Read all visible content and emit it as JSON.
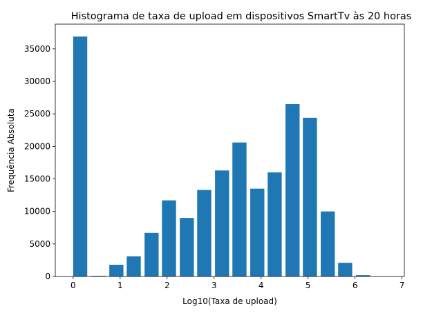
{
  "chart_data": {
    "type": "bar",
    "title": "Histograma de taxa de upload em dispositivos SmartTv às 20 horas",
    "xlabel": "Log10(Taxa de upload)",
    "ylabel": "Frequência Absoluta",
    "xlim": [
      -0.38,
      7.05
    ],
    "ylim": [
      0,
      38800
    ],
    "bar_width": 0.3,
    "bar_color": "#1f77b4",
    "x": [
      0.15,
      0.54,
      0.92,
      1.29,
      1.67,
      2.04,
      2.42,
      2.79,
      3.17,
      3.54,
      3.92,
      4.29,
      4.67,
      5.04,
      5.42,
      5.79,
      6.17,
      6.54
    ],
    "values": [
      36900,
      100,
      1800,
      3100,
      6700,
      11700,
      9000,
      13300,
      16300,
      20600,
      13500,
      16000,
      26500,
      24400,
      10000,
      2100,
      200,
      0
    ],
    "xticks": [
      "0",
      "1",
      "2",
      "3",
      "4",
      "5",
      "6",
      "7"
    ],
    "yticks": [
      "0",
      "5000",
      "10000",
      "15000",
      "20000",
      "25000",
      "30000",
      "35000"
    ],
    "grid": false,
    "legend": "none"
  }
}
